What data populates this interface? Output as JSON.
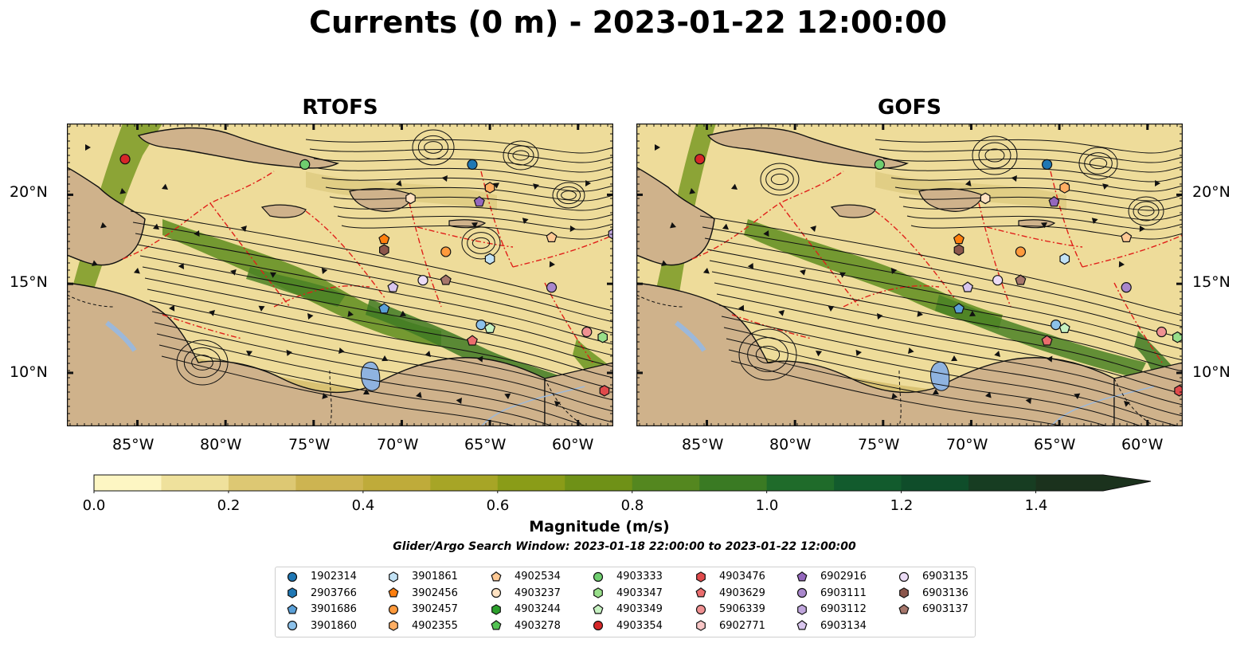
{
  "title": "Currents (0 m) - 2023-01-22 12:00:00",
  "panels": [
    {
      "title": "RTOFS"
    },
    {
      "title": "GOFS"
    }
  ],
  "axes": {
    "lon_ticks": [
      "85°W",
      "80°W",
      "75°W",
      "70°W",
      "65°W",
      "60°W"
    ],
    "lat_ticks": [
      "20°N",
      "15°N",
      "10°N"
    ],
    "lon_range": [
      -89,
      -58
    ],
    "lat_range": [
      7,
      24
    ]
  },
  "colorbar": {
    "title": "Magnitude (m/s)",
    "ticks": [
      "0.0",
      "0.2",
      "0.4",
      "0.6",
      "0.8",
      "1.0",
      "1.2",
      "1.4"
    ],
    "range": [
      0,
      1.5
    ],
    "extend": "max",
    "colors": [
      "#fdf6c3",
      "#efe19c",
      "#ddc873",
      "#cdb451",
      "#bfab3a",
      "#a7a526",
      "#8a9c18",
      "#6f9117",
      "#54871f",
      "#3a7a23",
      "#1f6b2a",
      "#125b2d",
      "#0f4d2a",
      "#173d22",
      "#1b321d"
    ]
  },
  "search_window": "Glider/Argo Search Window: 2023-01-18 22:00:00 to 2023-01-22 12:00:00",
  "legend": {
    "columns": [
      [
        {
          "id": "1902314",
          "shape": "circle",
          "color": "#1f77b4"
        },
        {
          "id": "2903766",
          "shape": "hexagon",
          "color": "#1f77b4"
        },
        {
          "id": "3901686",
          "shape": "pentagon",
          "color": "#5aa0d8"
        },
        {
          "id": "3901860",
          "shape": "circle",
          "color": "#8cc1ea"
        }
      ],
      [
        {
          "id": "3901861",
          "shape": "hexagon",
          "color": "#c2e2f5"
        },
        {
          "id": "3902456",
          "shape": "pentagon",
          "color": "#ff7f0e"
        },
        {
          "id": "3902457",
          "shape": "circle",
          "color": "#ff9a3c"
        },
        {
          "id": "4902355",
          "shape": "hexagon",
          "color": "#ffae63"
        }
      ],
      [
        {
          "id": "4902534",
          "shape": "pentagon",
          "color": "#ffc994"
        },
        {
          "id": "4903237",
          "shape": "circle",
          "color": "#ffe2c2"
        },
        {
          "id": "4903244",
          "shape": "hexagon",
          "color": "#2ca02c"
        },
        {
          "id": "4903278",
          "shape": "pentagon",
          "color": "#53c253"
        }
      ],
      [
        {
          "id": "4903333",
          "shape": "circle",
          "color": "#6fce6f"
        },
        {
          "id": "4903347",
          "shape": "hexagon",
          "color": "#98df8a"
        },
        {
          "id": "4903349",
          "shape": "pentagon",
          "color": "#c7f2c2"
        },
        {
          "id": "4903354",
          "shape": "circle",
          "color": "#d62728"
        }
      ],
      [
        {
          "id": "4903476",
          "shape": "hexagon",
          "color": "#e04a4b"
        },
        {
          "id": "4903629",
          "shape": "pentagon",
          "color": "#eb6d6e"
        },
        {
          "id": "5906339",
          "shape": "circle",
          "color": "#f09192"
        },
        {
          "id": "6902771",
          "shape": "hexagon",
          "color": "#f8c6c6"
        }
      ],
      [
        {
          "id": "6902916",
          "shape": "pentagon",
          "color": "#9467bd"
        },
        {
          "id": "6903111",
          "shape": "circle",
          "color": "#a987cc"
        },
        {
          "id": "6903112",
          "shape": "hexagon",
          "color": "#c0a6dd"
        },
        {
          "id": "6903134",
          "shape": "pentagon",
          "color": "#d9c6ee"
        }
      ],
      [
        {
          "id": "6903135",
          "shape": "circle",
          "color": "#ecdcf6"
        },
        {
          "id": "6903136",
          "shape": "hexagon",
          "color": "#8c564b"
        },
        {
          "id": "6903137",
          "shape": "pentagon",
          "color": "#a6766b"
        }
      ]
    ]
  },
  "floats": [
    {
      "lon": -85.7,
      "lat": 22.0,
      "color": "#d62728",
      "shape": "circle"
    },
    {
      "lon": -75.5,
      "lat": 21.7,
      "color": "#6fce6f",
      "shape": "circle"
    },
    {
      "lon": -66.0,
      "lat": 21.7,
      "color": "#1f77b4",
      "shape": "circle"
    },
    {
      "lon": -65.0,
      "lat": 20.4,
      "color": "#ffae63",
      "shape": "hexagon"
    },
    {
      "lon": -65.6,
      "lat": 19.6,
      "color": "#9467bd",
      "shape": "pentagon"
    },
    {
      "lon": -69.5,
      "lat": 19.8,
      "color": "#ffe2c2",
      "shape": "hexagon"
    },
    {
      "lon": -71.0,
      "lat": 17.5,
      "color": "#ff7f0e",
      "shape": "pentagon"
    },
    {
      "lon": -71.0,
      "lat": 16.9,
      "color": "#8c564b",
      "shape": "hexagon"
    },
    {
      "lon": -67.5,
      "lat": 16.8,
      "color": "#ff9a3c",
      "shape": "circle"
    },
    {
      "lon": -65.0,
      "lat": 16.4,
      "color": "#c2e2f5",
      "shape": "hexagon"
    },
    {
      "lon": -61.5,
      "lat": 17.6,
      "color": "#ffc994",
      "shape": "pentagon"
    },
    {
      "lon": -58.0,
      "lat": 17.8,
      "color": "#c0a6dd",
      "shape": "hexagon"
    },
    {
      "lon": -68.8,
      "lat": 15.2,
      "color": "#ecdcf6",
      "shape": "circle"
    },
    {
      "lon": -67.5,
      "lat": 15.2,
      "color": "#a6766b",
      "shape": "pentagon"
    },
    {
      "lon": -70.5,
      "lat": 14.8,
      "color": "#d9c6ee",
      "shape": "pentagon"
    },
    {
      "lon": -61.5,
      "lat": 14.8,
      "color": "#a987cc",
      "shape": "circle"
    },
    {
      "lon": -71.0,
      "lat": 13.6,
      "color": "#5aa0d8",
      "shape": "pentagon"
    },
    {
      "lon": -65.5,
      "lat": 12.7,
      "color": "#8cc1ea",
      "shape": "circle"
    },
    {
      "lon": -65.0,
      "lat": 12.5,
      "color": "#c7f2c2",
      "shape": "pentagon"
    },
    {
      "lon": -66.0,
      "lat": 11.8,
      "color": "#eb6d6e",
      "shape": "pentagon"
    },
    {
      "lon": -59.5,
      "lat": 12.3,
      "color": "#f09192",
      "shape": "circle"
    },
    {
      "lon": -58.6,
      "lat": 12.0,
      "color": "#98df8a",
      "shape": "hexagon"
    },
    {
      "lon": -58.5,
      "lat": 9.0,
      "color": "#e04a4b",
      "shape": "hexagon"
    }
  ]
}
